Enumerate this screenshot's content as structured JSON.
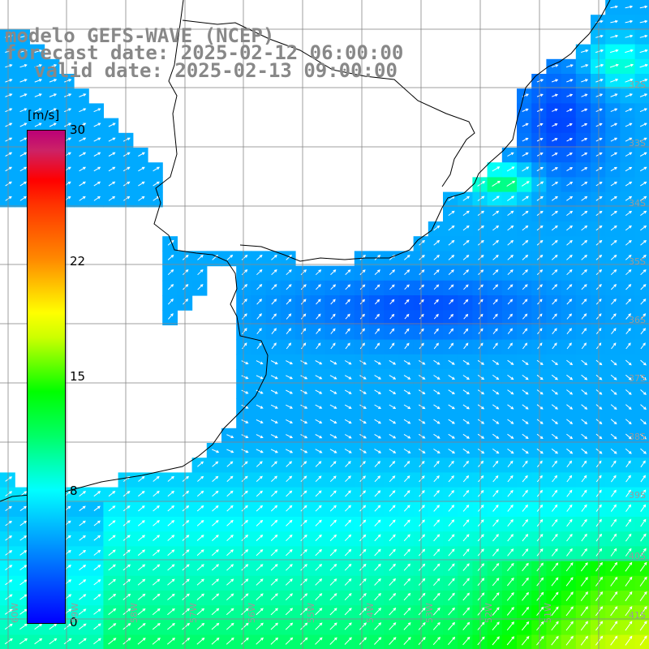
{
  "header": {
    "model_line": "modelo GEFS-WAVE (NCEP)",
    "forecast_line": "forecast date: 2025-02-12 06:00:00",
    "valid_line": "valid date: 2025-02-13 09:00:00"
  },
  "colorbar": {
    "unit": "[m/s]",
    "min": 0,
    "max": 30,
    "ticks": [
      "30",
      "22",
      "15",
      "8",
      "0"
    ],
    "tick_values": [
      30,
      22,
      15,
      8,
      0
    ],
    "colors": [
      "#0000ff",
      "#00aaff",
      "#00ffff",
      "#00ff00",
      "#ffff00",
      "#ff8800",
      "#ff0000",
      "#bb0077"
    ]
  },
  "grid": {
    "lat_labels": [
      "32S",
      "33S",
      "34S",
      "35S",
      "36S",
      "37S",
      "38S",
      "39S",
      "40S",
      "41S"
    ],
    "lon_labels": [
      "60W",
      "59W",
      "58W",
      "57W",
      "56W",
      "55W",
      "54W",
      "53W",
      "52W",
      "51W"
    ]
  },
  "map_data": {
    "type": "wind-field",
    "variable": "wind speed",
    "lon_range": [
      -61,
      -50
    ],
    "lat_range": [
      -31,
      -42
    ],
    "vector_color": "#ffffff",
    "coast_color": "#000000",
    "grid_color": "#888888"
  }
}
